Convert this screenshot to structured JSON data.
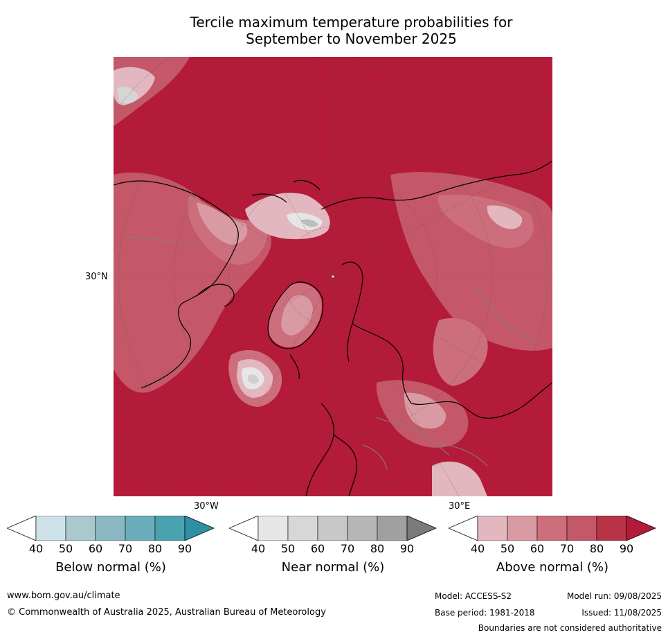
{
  "title": {
    "line1": "Tercile maximum temperature probabilities for",
    "line2": "September to November 2025"
  },
  "map": {
    "projection_labels": {
      "lat": "30°N",
      "lon_west": "30°W",
      "lon_east": "30°E"
    },
    "colors": {
      "ocean_fill": "#b31b38",
      "above_40": "#e3b7bf",
      "above_50": "#d99aa3",
      "above_60": "#cd6e7c",
      "above_70": "#c45868",
      "above_80": "#b93347",
      "near_40": "#e6e6e6",
      "near_50": "#d5d5d5",
      "coastline": "#000000",
      "borders": "#808080",
      "graticule": "#555555"
    }
  },
  "colorbars": [
    {
      "label": "Below normal (%)",
      "ticks": [
        "40",
        "50",
        "60",
        "70",
        "80",
        "90"
      ],
      "colors": [
        "#ffffff",
        "#cde3e9",
        "#a9c9ce",
        "#8bb8c2",
        "#6badbb",
        "#4aa2b1",
        "#2f8fa3"
      ]
    },
    {
      "label": "Near normal (%)",
      "ticks": [
        "40",
        "50",
        "60",
        "70",
        "80",
        "90"
      ],
      "colors": [
        "#ffffff",
        "#e6e6e6",
        "#d7d7d7",
        "#c8c8c8",
        "#b6b6b6",
        "#a0a0a0",
        "#7a7a7a"
      ]
    },
    {
      "label": "Above normal (%)",
      "ticks": [
        "40",
        "50",
        "60",
        "70",
        "80",
        "90"
      ],
      "colors": [
        "#ffffff",
        "#e3b7bf",
        "#d99aa3",
        "#cd6e7c",
        "#c45868",
        "#b93347",
        "#b31b38"
      ]
    }
  ],
  "footer": {
    "website": "www.bom.gov.au/climate",
    "copyright": "© Commonwealth of Australia 2025, Australian Bureau of Meteorology",
    "model": "Model: ACCESS-S2",
    "model_run": "Model run: 09/08/2025",
    "base_period": "Base period: 1981-2018",
    "issued": "Issued: 11/08/2025",
    "disclaimer": "Boundaries are not considered authoritative"
  }
}
